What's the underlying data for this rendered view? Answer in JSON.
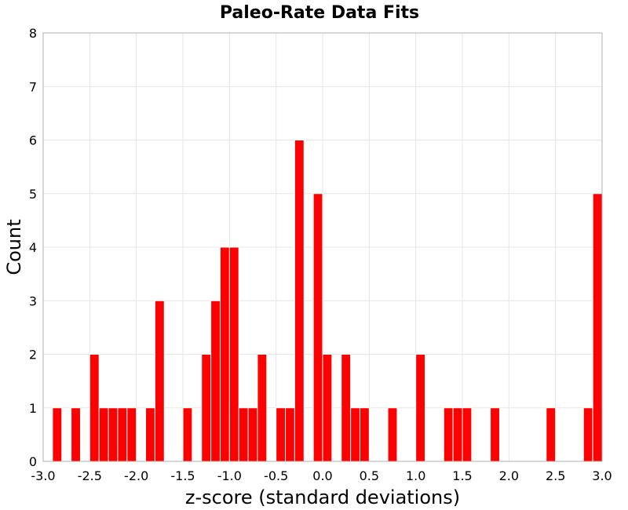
{
  "chart_data": {
    "type": "bar",
    "title": "Paleo-Rate Data Fits",
    "xlabel": "z-score (standard deviations)",
    "ylabel": "Count",
    "xlim": [
      -3.0,
      3.0
    ],
    "ylim": [
      0,
      8
    ],
    "bin_width": 0.1,
    "grid": true,
    "bar_color": "#ff0000",
    "x_ticks": [
      "-3.0",
      "-2.5",
      "-2.0",
      "-1.5",
      "-1.0",
      "-0.5",
      "0.0",
      "0.5",
      "1.0",
      "1.5",
      "2.0",
      "2.5",
      "3.0"
    ],
    "y_ticks": [
      "0",
      "1",
      "2",
      "3",
      "4",
      "5",
      "6",
      "7",
      "8"
    ],
    "bins": [
      {
        "x": -2.85,
        "count": 1
      },
      {
        "x": -2.65,
        "count": 1
      },
      {
        "x": -2.45,
        "count": 2
      },
      {
        "x": -2.35,
        "count": 1
      },
      {
        "x": -2.25,
        "count": 1
      },
      {
        "x": -2.15,
        "count": 1
      },
      {
        "x": -2.05,
        "count": 1
      },
      {
        "x": -1.85,
        "count": 1
      },
      {
        "x": -1.75,
        "count": 3
      },
      {
        "x": -1.45,
        "count": 1
      },
      {
        "x": -1.25,
        "count": 2
      },
      {
        "x": -1.15,
        "count": 3
      },
      {
        "x": -1.05,
        "count": 4
      },
      {
        "x": -0.95,
        "count": 4
      },
      {
        "x": -0.85,
        "count": 1
      },
      {
        "x": -0.75,
        "count": 1
      },
      {
        "x": -0.65,
        "count": 2
      },
      {
        "x": -0.45,
        "count": 1
      },
      {
        "x": -0.35,
        "count": 1
      },
      {
        "x": -0.25,
        "count": 6
      },
      {
        "x": -0.05,
        "count": 5
      },
      {
        "x": 0.05,
        "count": 2
      },
      {
        "x": 0.25,
        "count": 2
      },
      {
        "x": 0.35,
        "count": 1
      },
      {
        "x": 0.45,
        "count": 1
      },
      {
        "x": 0.75,
        "count": 1
      },
      {
        "x": 1.05,
        "count": 2
      },
      {
        "x": 1.35,
        "count": 1
      },
      {
        "x": 1.45,
        "count": 1
      },
      {
        "x": 1.55,
        "count": 1
      },
      {
        "x": 1.85,
        "count": 1
      },
      {
        "x": 2.45,
        "count": 1
      },
      {
        "x": 2.85,
        "count": 1
      },
      {
        "x": 2.95,
        "count": 5
      }
    ]
  }
}
